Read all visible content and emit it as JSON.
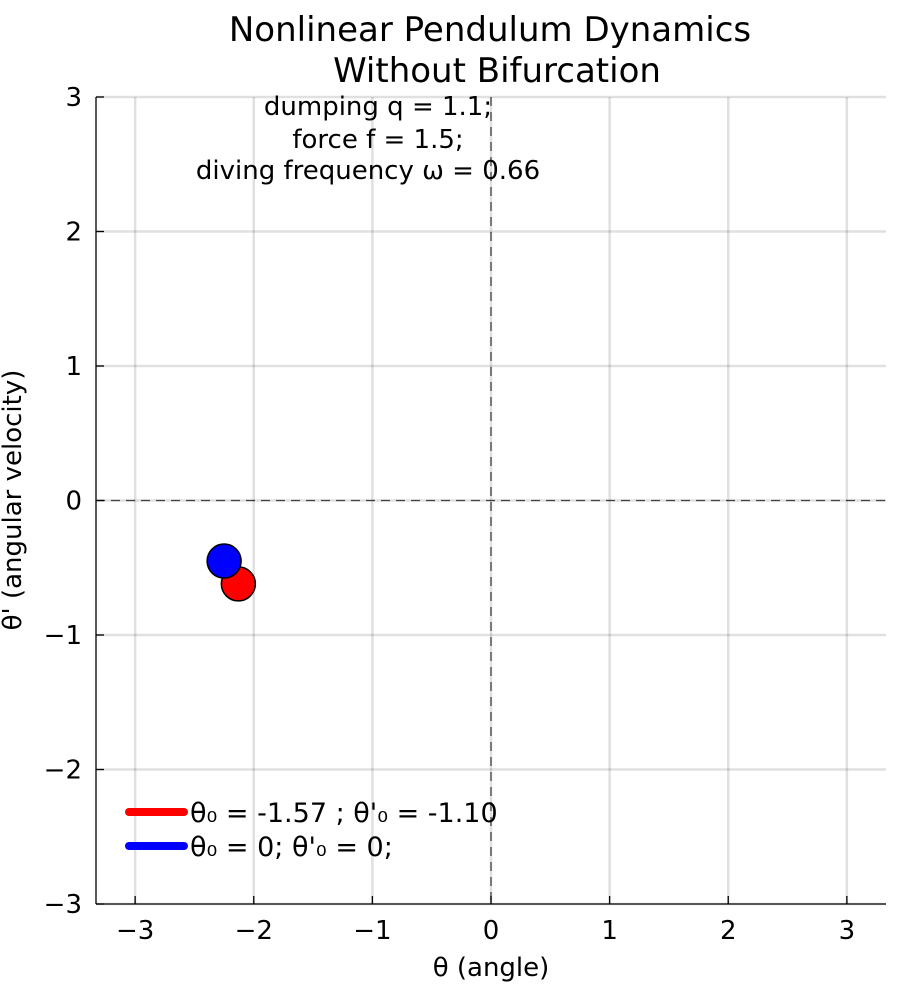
{
  "chart_data": {
    "type": "scatter",
    "title": [
      "Nonlinear Pendulum Dynamics",
      "Without Bifurcation"
    ],
    "xlabel": "θ (angle)",
    "ylabel": "θ' (angular velocity)",
    "xlim": [
      -3.33,
      3.33
    ],
    "ylim": [
      -3,
      3
    ],
    "xticks": [
      -3,
      -2,
      -1,
      0,
      1,
      2,
      3
    ],
    "yticks": [
      -3,
      -2,
      -1,
      0,
      1,
      2,
      3
    ],
    "xtick_labels": [
      "−3",
      "−2",
      "−1",
      "0",
      "1",
      "2",
      "3"
    ],
    "ytick_labels": [
      "−3",
      "−2",
      "−1",
      "0",
      "1",
      "2",
      "3"
    ],
    "grid": true,
    "reference_lines": {
      "x": 0,
      "y": 0,
      "style": "dashed"
    },
    "annotation": [
      "dumping q = 1.1;",
      "force f = 1.5;",
      "diving frequency ω = 0.66"
    ],
    "legend_position": "bottom-left",
    "series": [
      {
        "name": "θ₀ = -1.57 ; θ'₀ = -1.10",
        "color": "#ff0000",
        "x": [
          -2.13
        ],
        "y": [
          -0.62
        ]
      },
      {
        "name": "θ₀ = 0; θ'₀ = 0;",
        "color": "#0000ff",
        "x": [
          -2.25
        ],
        "y": [
          -0.45
        ]
      }
    ]
  }
}
